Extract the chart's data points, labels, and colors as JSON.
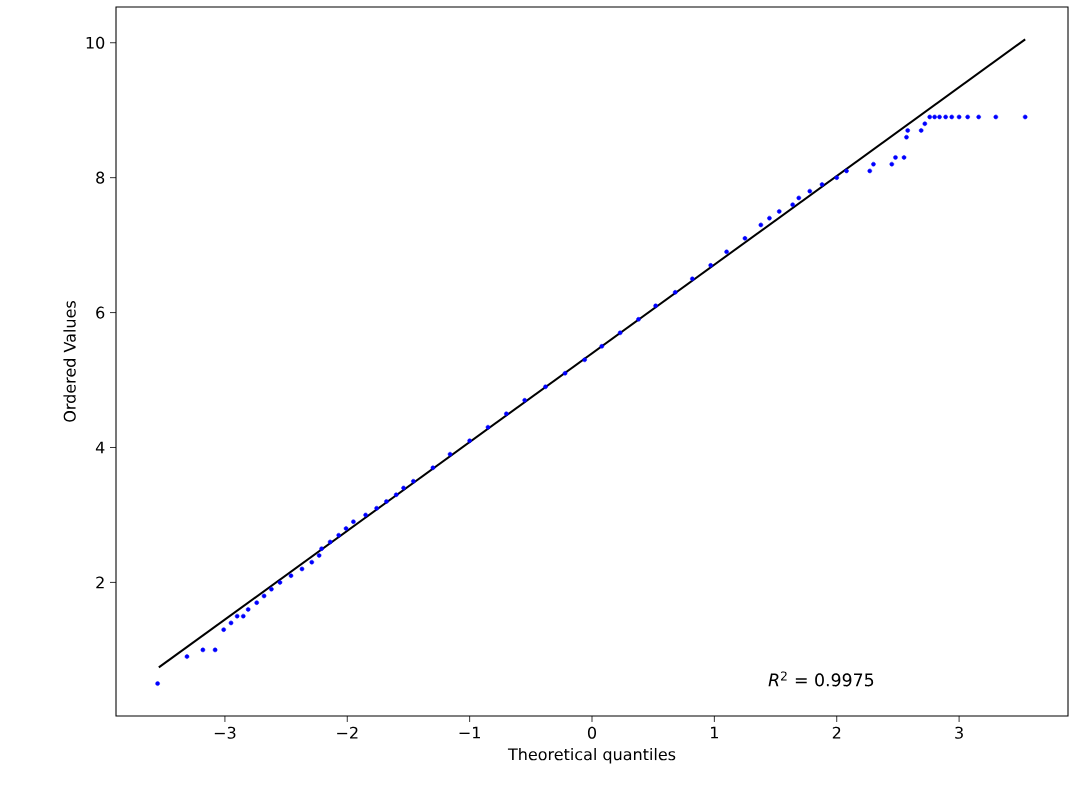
{
  "chart_data": {
    "type": "scatter",
    "xlabel": "Theoretical quantiles",
    "ylabel": "Ordered Values",
    "xlim": [
      -3.89,
      3.89
    ],
    "ylim": [
      0.02,
      10.53
    ],
    "xticks": [
      {
        "value": -3,
        "label": "−3"
      },
      {
        "value": -2,
        "label": "−2"
      },
      {
        "value": -1,
        "label": "−1"
      },
      0,
      1,
      2,
      3
    ],
    "yticks": [
      2,
      4,
      6,
      8,
      10
    ],
    "marker": "circle",
    "annotations": [
      "*R*$^{2}$ = 0.9975"
    ],
    "series": [
      {
        "color": "#0000ff",
        "x": [
          -3.55,
          -3.31,
          -3.18,
          -3.08,
          -3.01,
          -2.95,
          -2.9,
          -2.85,
          -2.81,
          -2.74,
          -2.68,
          -2.62,
          -2.55,
          -2.46,
          -2.37,
          -2.29,
          -2.23,
          -2.21,
          -2.14,
          -2.07,
          -2.01,
          -1.95,
          -1.85,
          -1.76,
          -1.68,
          -1.6,
          -1.54,
          -1.46,
          -1.3,
          -1.16,
          -1.0,
          -0.85,
          -0.7,
          -0.55,
          -0.38,
          -0.22,
          -0.06,
          0.08,
          0.23,
          0.38,
          0.52,
          0.68,
          0.82,
          0.97,
          1.1,
          1.25,
          1.38,
          1.45,
          1.53,
          1.64,
          1.69,
          1.78,
          1.88,
          2.0,
          2.08,
          2.27,
          2.3,
          2.45,
          2.48,
          2.55,
          2.57,
          2.58,
          2.69,
          2.72,
          2.76,
          2.8,
          2.84,
          2.89,
          2.94,
          3.0,
          3.07,
          3.16,
          3.3,
          3.54
        ],
        "values": [
          0.5,
          0.9,
          1.0,
          1.0,
          1.3,
          1.4,
          1.5,
          1.5,
          1.6,
          1.7,
          1.8,
          1.9,
          2.0,
          2.1,
          2.2,
          2.3,
          2.4,
          2.5,
          2.6,
          2.7,
          2.8,
          2.9,
          3.0,
          3.1,
          3.2,
          3.3,
          3.4,
          3.5,
          3.7,
          3.9,
          4.1,
          4.3,
          4.5,
          4.7,
          4.9,
          5.1,
          5.3,
          5.5,
          5.7,
          5.9,
          6.1,
          6.3,
          6.5,
          6.7,
          6.9,
          7.1,
          7.3,
          7.4,
          7.5,
          7.6,
          7.7,
          7.8,
          7.9,
          8.0,
          8.1,
          8.1,
          8.2,
          8.2,
          8.3,
          8.3,
          8.6,
          8.7,
          8.7,
          8.8,
          8.9,
          8.9,
          8.9,
          8.9,
          8.9,
          8.9,
          8.9,
          8.9,
          8.9,
          8.9
        ]
      },
      {
        "type": "line",
        "color": "#000000",
        "marker": "none",
        "line_style": "solid",
        "x": [
          -3.54,
          3.54
        ],
        "values": [
          0.74,
          10.05
        ]
      }
    ]
  }
}
